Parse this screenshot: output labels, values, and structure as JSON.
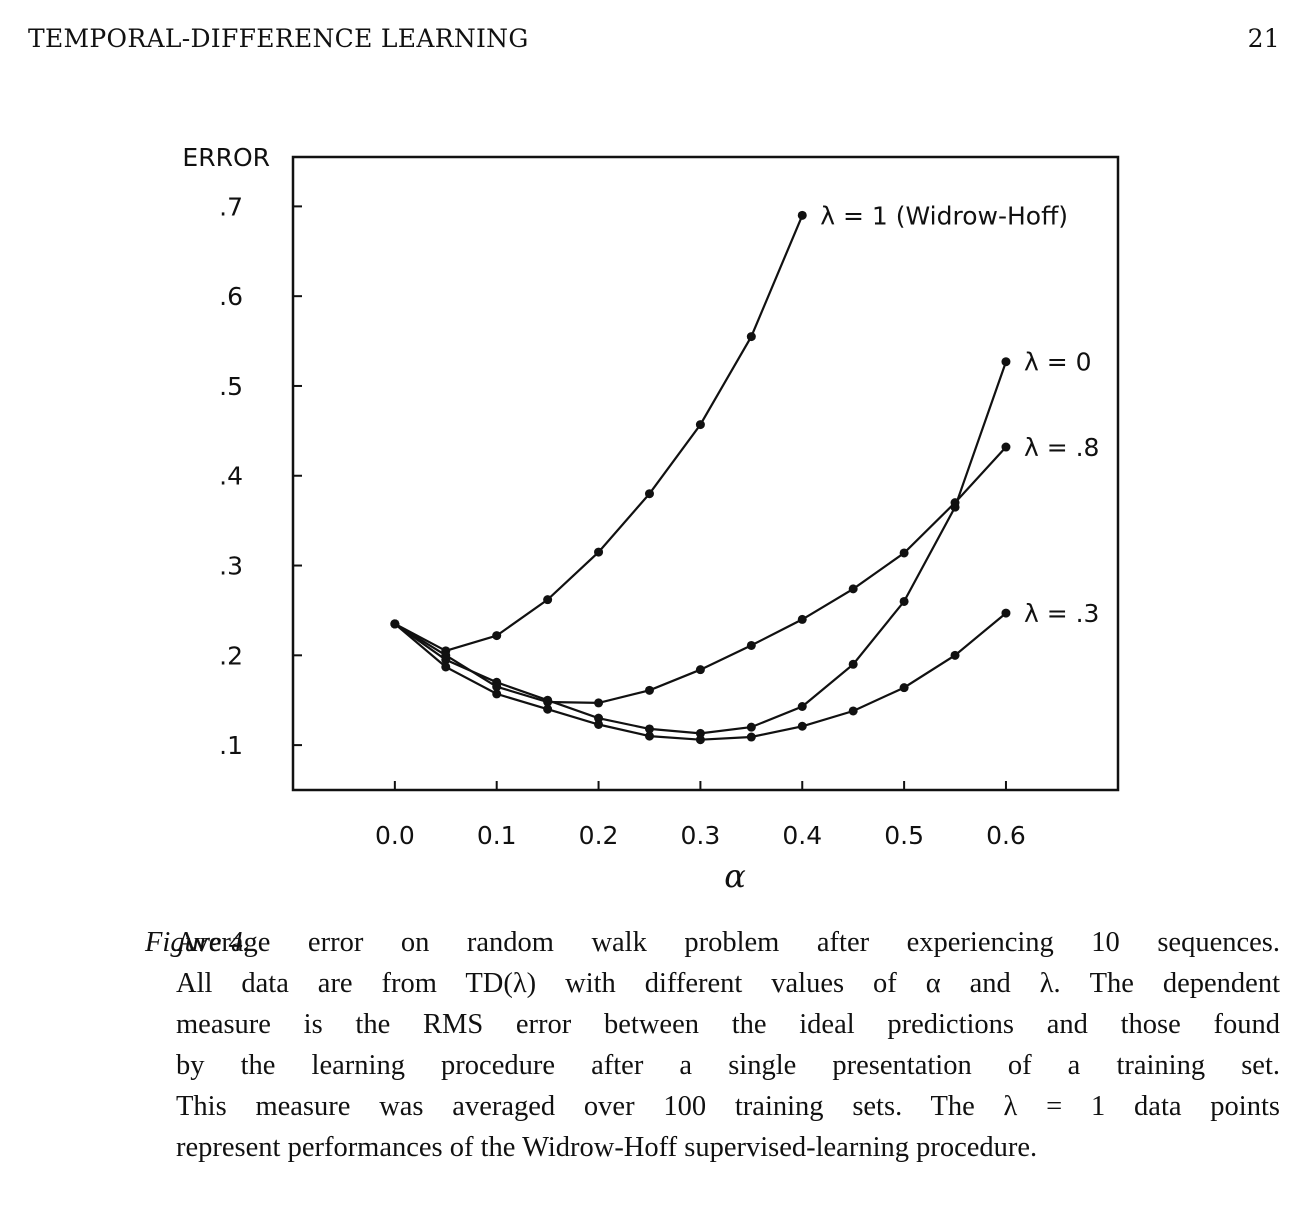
{
  "running_head": {
    "title": "TEMPORAL-DIFFERENCE LEARNING",
    "page_number": "21"
  },
  "chart_data": {
    "type": "line",
    "ylabel": "ERROR",
    "xlabel": "α",
    "xlim": [
      -0.1,
      0.71
    ],
    "ylim": [
      0.05,
      0.755
    ],
    "x_ticks": [
      "0.0",
      "0.1",
      "0.2",
      "0.3",
      "0.4",
      "0.5",
      "0.6"
    ],
    "x_tick_values": [
      0.0,
      0.1,
      0.2,
      0.3,
      0.4,
      0.5,
      0.6
    ],
    "y_ticks": [
      ".1",
      ".2",
      ".3",
      ".4",
      ".5",
      ".6",
      ".7"
    ],
    "y_tick_values": [
      0.1,
      0.2,
      0.3,
      0.4,
      0.5,
      0.6,
      0.7
    ],
    "grid": false,
    "legend": "inline labels at series ends",
    "series": [
      {
        "name": "λ = 1 (Widrow-Hoff)",
        "x": [
          0.0,
          0.05,
          0.1,
          0.15,
          0.2,
          0.25,
          0.3,
          0.35,
          0.4
        ],
        "y": [
          0.235,
          0.205,
          0.222,
          0.262,
          0.315,
          0.38,
          0.457,
          0.555,
          0.69
        ]
      },
      {
        "name": "λ = 0",
        "x": [
          0.0,
          0.05,
          0.1,
          0.15,
          0.2,
          0.25,
          0.3,
          0.35,
          0.4,
          0.45,
          0.5,
          0.55,
          0.6
        ],
        "y": [
          0.235,
          0.195,
          0.17,
          0.15,
          0.13,
          0.118,
          0.113,
          0.12,
          0.143,
          0.19,
          0.26,
          0.365,
          0.527
        ]
      },
      {
        "name": "λ = .8",
        "x": [
          0.0,
          0.05,
          0.1,
          0.15,
          0.2,
          0.25,
          0.3,
          0.35,
          0.4,
          0.45,
          0.5,
          0.55,
          0.6
        ],
        "y": [
          0.235,
          0.2,
          0.165,
          0.148,
          0.147,
          0.161,
          0.184,
          0.211,
          0.24,
          0.274,
          0.314,
          0.37,
          0.432
        ]
      },
      {
        "name": "λ = .3",
        "x": [
          0.0,
          0.05,
          0.1,
          0.15,
          0.2,
          0.25,
          0.3,
          0.35,
          0.4,
          0.45,
          0.5,
          0.55,
          0.6
        ],
        "y": [
          0.235,
          0.187,
          0.157,
          0.14,
          0.123,
          0.11,
          0.106,
          0.109,
          0.121,
          0.138,
          0.164,
          0.2,
          0.247
        ]
      }
    ]
  },
  "caption": {
    "label": "Figure 4.",
    "lines": [
      "Average error on random walk problem after experiencing 10 sequences.",
      "All data are from TD(λ) with different values of α and λ. The dependent",
      "measure is the RMS error between the ideal predictions and those found",
      "by the learning procedure after a single presentation of a training set.",
      "This measure was averaged over 100 training sets. The λ = 1 data points",
      "represent performances of the Widrow-Hoff supervised-learning procedure."
    ]
  }
}
